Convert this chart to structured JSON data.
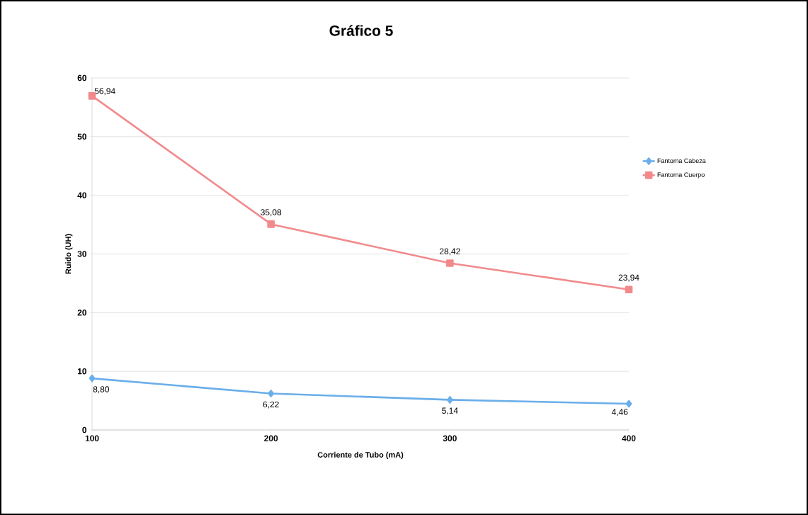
{
  "chart_data": {
    "type": "line",
    "title": "Gráfico 5",
    "xlabel": "Corriente de Tubo (mA)",
    "ylabel": "Ruido (UH)",
    "categories": [
      "100",
      "200",
      "300",
      "400"
    ],
    "series": [
      {
        "name": "Fantoma Cabeza",
        "color": "#6aaeea",
        "marker": "diamond",
        "values": [
          8.8,
          6.22,
          5.14,
          4.46
        ],
        "value_labels": [
          "8,80",
          "6,22",
          "5,14",
          "4,46"
        ]
      },
      {
        "name": "Fantoma Cuerpo",
        "color": "#f28a8c",
        "marker": "square",
        "values": [
          56.94,
          35.08,
          28.42,
          23.94
        ],
        "value_labels": [
          "56,94",
          "35,08",
          "28,42",
          "23,94"
        ]
      }
    ],
    "ylim": [
      0,
      60
    ],
    "yticks": [
      0,
      10,
      20,
      30,
      40,
      50,
      60
    ],
    "grid": "y",
    "legend": "right",
    "line_style": "solid"
  }
}
